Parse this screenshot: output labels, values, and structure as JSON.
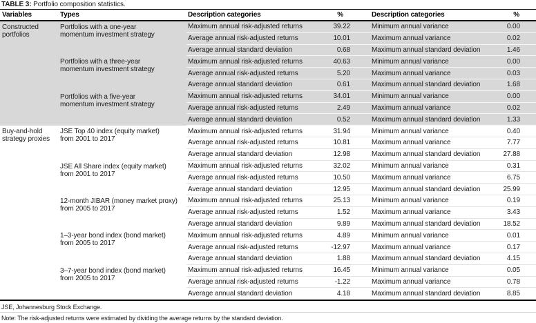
{
  "title": {
    "prefix": "TABLE 3:",
    "text": "Portfolio composition statistics."
  },
  "table": {
    "headers": [
      "Variables",
      "Types",
      "Description categories",
      "%",
      "Description categories",
      "%"
    ],
    "sections": [
      {
        "variable": "Constructed portfolios",
        "shaded": true,
        "groups": [
          {
            "type_lines": [
              "Portfolios with a one-year",
              "momentum investment strategy"
            ],
            "rows": [
              {
                "d1": "Maximum annual risk-adjusted returns",
                "p1": "39.22",
                "d2": "Minimum annual variance",
                "p2": "0.00"
              },
              {
                "d1": "Average annual risk-adjusted returns",
                "p1": "10.01",
                "d2": "Maximum annual variance",
                "p2": "0.02"
              },
              {
                "d1": "Average annual standard deviation",
                "p1": "0.68",
                "d2": "Maximum annual standard deviation",
                "p2": "1.46"
              }
            ]
          },
          {
            "type_lines": [
              "Portfolios with a three-year",
              "momentum investment strategy"
            ],
            "rows": [
              {
                "d1": "Maximum annual risk-adjusted returns",
                "p1": "40.63",
                "d2": "Minimum annual variance",
                "p2": "0.00"
              },
              {
                "d1": "Average annual risk-adjusted returns",
                "p1": "5.20",
                "d2": "Maximum annual variance",
                "p2": "0.03"
              },
              {
                "d1": "Average annual standard deviation",
                "p1": "0.61",
                "d2": "Maximum annual standard deviation",
                "p2": "1.68"
              }
            ]
          },
          {
            "type_lines": [
              "Portfolios with a five-year",
              "momentum investment strategy"
            ],
            "rows": [
              {
                "d1": "Maximum annual risk-adjusted returns",
                "p1": "34.01",
                "d2": "Minimum annual variance",
                "p2": "0.00"
              },
              {
                "d1": "Average annual risk-adjusted returns",
                "p1": "2.49",
                "d2": "Maximum annual variance",
                "p2": "0.02"
              },
              {
                "d1": "Average annual standard deviation",
                "p1": "0.52",
                "d2": "Maximum annual standard deviation",
                "p2": "1.33"
              }
            ]
          }
        ]
      },
      {
        "variable": "Buy-and-hold strategy proxies",
        "shaded": false,
        "groups": [
          {
            "type_lines": [
              "JSE Top 40 index (equity market)",
              "from 2001 to 2017"
            ],
            "rows": [
              {
                "d1": "Maximum annual risk-adjusted returns",
                "p1": "31.94",
                "d2": "Minimum annual variance",
                "p2": "0.40"
              },
              {
                "d1": "Average annual risk-adjusted returns",
                "p1": "10.81",
                "d2": "Maximum annual variance",
                "p2": "7.77"
              },
              {
                "d1": "Average annual standard deviation",
                "p1": "12.98",
                "d2": "Maximum annual standard deviation",
                "p2": "27.88"
              }
            ]
          },
          {
            "type_lines": [
              "JSE All Share index (equity market)",
              "from 2001 to 2017"
            ],
            "rows": [
              {
                "d1": "Maximum annual risk-adjusted returns",
                "p1": "32.02",
                "d2": "Minimum annual variance",
                "p2": "0.31"
              },
              {
                "d1": "Average annual risk-adjusted returns",
                "p1": "10.50",
                "d2": "Maximum annual variance",
                "p2": "6.75"
              },
              {
                "d1": "Average annual standard deviation",
                "p1": "12.95",
                "d2": "Maximum annual standard deviation",
                "p2": "25.99"
              }
            ]
          },
          {
            "type_lines": [
              "12-month JIBAR (money market proxy)",
              "from 2005 to 2017"
            ],
            "rows": [
              {
                "d1": "Maximum annual risk-adjusted returns",
                "p1": "25.13",
                "d2": "Minimum annual variance",
                "p2": "0.19"
              },
              {
                "d1": "Average annual risk-adjusted returns",
                "p1": "1.52",
                "d2": "Maximum annual variance",
                "p2": "3.43"
              },
              {
                "d1": "Average annual standard deviation",
                "p1": "9.89",
                "d2": "Maximum annual standard deviation",
                "p2": "18.52"
              }
            ]
          },
          {
            "type_lines": [
              "1–3-year bond index (bond market)",
              "from 2005 to 2017"
            ],
            "rows": [
              {
                "d1": "Maximum annual risk-adjusted returns",
                "p1": "4.89",
                "d2": "Minimum annual variance",
                "p2": "0.01"
              },
              {
                "d1": "Average annual risk-adjusted returns",
                "p1": "-12.97",
                "d2": "Maximum annual variance",
                "p2": "0.17"
              },
              {
                "d1": "Average annual standard deviation",
                "p1": "1.88",
                "d2": "Maximum annual standard deviation",
                "p2": "4.15"
              }
            ]
          },
          {
            "type_lines": [
              "3–7-year bond index (bond market)",
              "from 2005 to 2017"
            ],
            "rows": [
              {
                "d1": "Maximum annual risk-adjusted returns",
                "p1": "16.45",
                "d2": "Minimum annual variance",
                "p2": "0.05"
              },
              {
                "d1": "Average annual risk-adjusted returns",
                "p1": "-1.22",
                "d2": "Maximum annual variance",
                "p2": "0.78"
              },
              {
                "d1": "Average annual standard deviation",
                "p1": "4.18",
                "d2": "Maximum annual standard deviation",
                "p2": "8.85"
              }
            ]
          }
        ]
      }
    ]
  },
  "footnotes": [
    "JSE, Johannesburg Stock Exchange.",
    "Note: The risk-adjusted returns were estimated by dividing the average returns by the standard deviation."
  ]
}
